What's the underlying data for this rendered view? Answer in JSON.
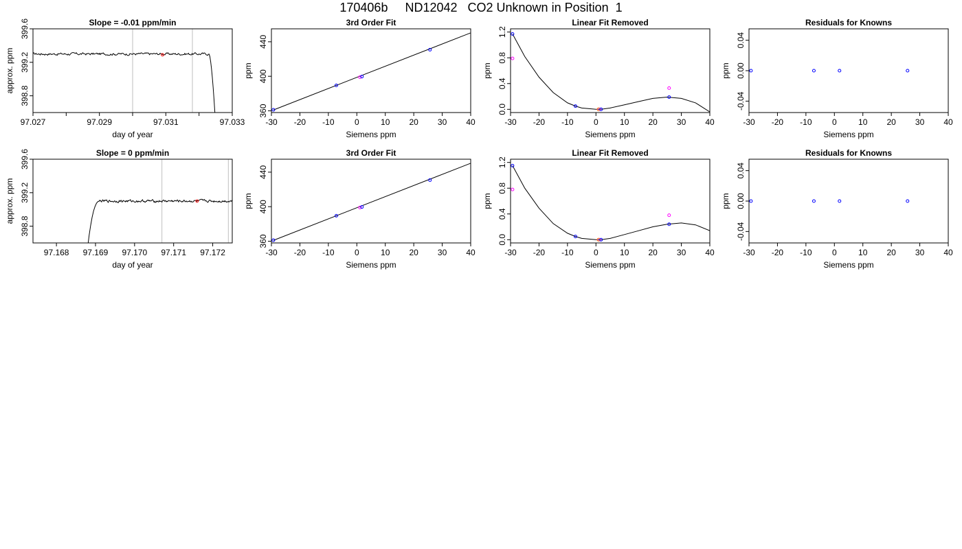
{
  "title": "170406b     ND12042   CO2 Unknown in Position  1",
  "colors": {
    "line": "#000000",
    "grid": "#bebebe",
    "known": "#0000ff",
    "unknown": "#ff00ff",
    "marker": "#ff0000"
  },
  "chart_data": [
    {
      "type": "line",
      "title": "Slope =  -0.01  ppm/min",
      "xlabel": "day of year",
      "ylabel": "approx. ppm",
      "xlim": [
        97.027,
        97.033
      ],
      "ylim": [
        398.6,
        399.6
      ],
      "xticks": [
        97.027,
        97.028,
        97.029,
        97.03,
        97.031,
        97.032,
        97.033
      ],
      "xtick_labels": [
        "97.027",
        "",
        "97.029",
        "",
        "97.031",
        "",
        "97.033"
      ],
      "yticks": [
        398.8,
        399.2,
        399.6
      ],
      "ytick_labels": [
        "398.8",
        "399.2",
        "399.6"
      ],
      "vlines": [
        97.03,
        97.0318
      ],
      "trace": {
        "x_start": 97.027,
        "x_end": 97.0323,
        "level": 399.3,
        "noise": 0.012,
        "ramp": "down",
        "ramp_x": [
          97.0323,
          97.0325
        ],
        "ramp_y": [
          399.3,
          398.45
        ]
      },
      "marker": {
        "x": 97.0309,
        "y": 399.29
      }
    },
    {
      "type": "scatter",
      "title": "3rd Order Fit",
      "xlabel": "Siemens ppm",
      "ylabel": "ppm",
      "xlim": [
        -30,
        40
      ],
      "ylim": [
        358,
        455
      ],
      "xticks": [
        -30,
        -20,
        -10,
        0,
        10,
        20,
        30,
        40
      ],
      "xtick_labels": [
        "-30",
        "-20",
        "-10",
        "0",
        "10",
        "20",
        "30",
        "40"
      ],
      "yticks": [
        360,
        400,
        440
      ],
      "ytick_labels": [
        "360",
        "400",
        "440"
      ],
      "fit_line": [
        [
          -29.3,
          361
        ],
        [
          41,
          451.6
        ]
      ],
      "known_points": [
        [
          -29.3,
          361.2
        ],
        [
          -7.2,
          389.5
        ],
        [
          1.8,
          399.7
        ],
        [
          25.7,
          430.8
        ]
      ],
      "unknown_points": [
        [
          1.1,
          399.0
        ]
      ]
    },
    {
      "type": "scatter",
      "title": "Linear Fit Removed",
      "xlabel": "Siemens ppm",
      "ylabel": "ppm",
      "xlim": [
        -30,
        40
      ],
      "ylim": [
        -0.05,
        1.25
      ],
      "xticks": [
        -30,
        -20,
        -10,
        0,
        10,
        20,
        30,
        40
      ],
      "xtick_labels": [
        "-30",
        "-20",
        "-10",
        "0",
        "10",
        "20",
        "30",
        "40"
      ],
      "yticks": [
        0.0,
        0.4,
        0.8,
        1.2
      ],
      "ytick_labels": [
        "0.0",
        "0.4",
        "0.8",
        "1.2"
      ],
      "curve_points": [
        [
          -29.3,
          1.17
        ],
        [
          -25,
          0.82
        ],
        [
          -20,
          0.5
        ],
        [
          -15,
          0.26
        ],
        [
          -10,
          0.1
        ],
        [
          -7.2,
          0.05
        ],
        [
          -5,
          0.02
        ],
        [
          0,
          0.0
        ],
        [
          1.8,
          0.0
        ],
        [
          5,
          0.02
        ],
        [
          10,
          0.07
        ],
        [
          15,
          0.12
        ],
        [
          20,
          0.17
        ],
        [
          25,
          0.19
        ],
        [
          30,
          0.17
        ],
        [
          35,
          0.1
        ],
        [
          40,
          -0.04
        ]
      ],
      "known_points": [
        [
          -29.3,
          1.17
        ],
        [
          -7.2,
          0.05
        ],
        [
          1.8,
          0.0
        ],
        [
          25.7,
          0.19
        ]
      ],
      "unknown_points": [
        [
          -29.3,
          0.79
        ],
        [
          1.1,
          0.0
        ],
        [
          25.7,
          0.33
        ]
      ],
      "orange_point": [
        0.9,
        0.0
      ]
    },
    {
      "type": "scatter",
      "title": "Residuals for Knowns",
      "xlabel": "Siemens ppm",
      "ylabel": "ppm",
      "xlim": [
        -30,
        40
      ],
      "ylim": [
        -0.055,
        0.055
      ],
      "xticks": [
        -30,
        -20,
        -10,
        0,
        10,
        20,
        30,
        40
      ],
      "xtick_labels": [
        "-30",
        "-20",
        "-10",
        "0",
        "10",
        "20",
        "30",
        "40"
      ],
      "yticks": [
        -0.04,
        0.0,
        0.04
      ],
      "ytick_labels": [
        "-0.04",
        "0.00",
        "0.04"
      ],
      "known_points": [
        [
          -29.3,
          0.0
        ],
        [
          -7.2,
          0.0
        ],
        [
          1.8,
          0.0
        ],
        [
          25.7,
          0.0
        ]
      ]
    },
    {
      "type": "line",
      "title": "Slope =  0  ppm/min",
      "xlabel": "day of year",
      "ylabel": "approx. ppm",
      "xlim": [
        97.1674,
        97.1725
      ],
      "ylim": [
        398.6,
        399.6
      ],
      "xticks": [
        97.168,
        97.169,
        97.17,
        97.171,
        97.172
      ],
      "xtick_labels": [
        "97.168",
        "97.169",
        "97.170",
        "97.171",
        "97.172"
      ],
      "yticks": [
        398.8,
        399.2,
        399.6
      ],
      "ytick_labels": [
        "398.8",
        "399.2",
        "399.6"
      ],
      "vlines": [
        97.1707,
        97.1724
      ],
      "trace": {
        "x_start": 97.1691,
        "x_end": 97.1725,
        "level": 399.1,
        "noise": 0.012,
        "ramp": "up",
        "ramp_x": [
          97.1688,
          97.1691
        ],
        "ramp_y": [
          398.55,
          399.1
        ]
      },
      "marker": {
        "x": 97.1716,
        "y": 399.1
      }
    },
    {
      "type": "scatter",
      "title": "3rd Order Fit",
      "xlabel": "Siemens ppm",
      "ylabel": "ppm",
      "xlim": [
        -30,
        40
      ],
      "ylim": [
        358,
        455
      ],
      "xticks": [
        -30,
        -20,
        -10,
        0,
        10,
        20,
        30,
        40
      ],
      "xtick_labels": [
        "-30",
        "-20",
        "-10",
        "0",
        "10",
        "20",
        "30",
        "40"
      ],
      "yticks": [
        360,
        400,
        440
      ],
      "ytick_labels": [
        "360",
        "400",
        "440"
      ],
      "fit_line": [
        [
          -29.3,
          361
        ],
        [
          41,
          451.6
        ]
      ],
      "known_points": [
        [
          -29.3,
          361.2
        ],
        [
          -7.2,
          389.5
        ],
        [
          1.8,
          399.7
        ],
        [
          25.7,
          430.8
        ]
      ],
      "unknown_points": [
        [
          1.1,
          399.0
        ]
      ]
    },
    {
      "type": "scatter",
      "title": "Linear Fit Removed",
      "xlabel": "Siemens ppm",
      "ylabel": "ppm",
      "xlim": [
        -30,
        40
      ],
      "ylim": [
        -0.05,
        1.25
      ],
      "xticks": [
        -30,
        -20,
        -10,
        0,
        10,
        20,
        30,
        40
      ],
      "xtick_labels": [
        "-30",
        "-20",
        "-10",
        "0",
        "10",
        "20",
        "30",
        "40"
      ],
      "yticks": [
        0.0,
        0.4,
        0.8,
        1.2
      ],
      "ytick_labels": [
        "0.0",
        "0.4",
        "0.8",
        "1.2"
      ],
      "curve_points": [
        [
          -29.3,
          1.15
        ],
        [
          -25,
          0.8
        ],
        [
          -20,
          0.49
        ],
        [
          -15,
          0.25
        ],
        [
          -10,
          0.1
        ],
        [
          -7.2,
          0.05
        ],
        [
          -5,
          0.02
        ],
        [
          0,
          0.0
        ],
        [
          1.8,
          0.0
        ],
        [
          5,
          0.02
        ],
        [
          10,
          0.08
        ],
        [
          15,
          0.14
        ],
        [
          20,
          0.2
        ],
        [
          25,
          0.24
        ],
        [
          30,
          0.26
        ],
        [
          35,
          0.23
        ],
        [
          40,
          0.14
        ],
        [
          41,
          0.12
        ]
      ],
      "known_points": [
        [
          -29.3,
          1.15
        ],
        [
          -7.2,
          0.05
        ],
        [
          1.8,
          0.0
        ],
        [
          25.7,
          0.24
        ]
      ],
      "unknown_points": [
        [
          -29.3,
          0.78
        ],
        [
          1.1,
          0.0
        ],
        [
          25.7,
          0.38
        ]
      ],
      "orange_point": [
        0.9,
        0.0
      ]
    },
    {
      "type": "scatter",
      "title": "Residuals for Knowns",
      "xlabel": "Siemens ppm",
      "ylabel": "ppm",
      "xlim": [
        -30,
        40
      ],
      "ylim": [
        -0.055,
        0.055
      ],
      "xticks": [
        -30,
        -20,
        -10,
        0,
        10,
        20,
        30,
        40
      ],
      "xtick_labels": [
        "-30",
        "-20",
        "-10",
        "0",
        "10",
        "20",
        "30",
        "40"
      ],
      "yticks": [
        -0.04,
        0.0,
        0.04
      ],
      "ytick_labels": [
        "-0.04",
        "0.00",
        "0.04"
      ],
      "known_points": [
        [
          -29.3,
          0.0
        ],
        [
          -7.2,
          0.0
        ],
        [
          1.8,
          0.0
        ],
        [
          25.7,
          0.0
        ]
      ]
    }
  ]
}
